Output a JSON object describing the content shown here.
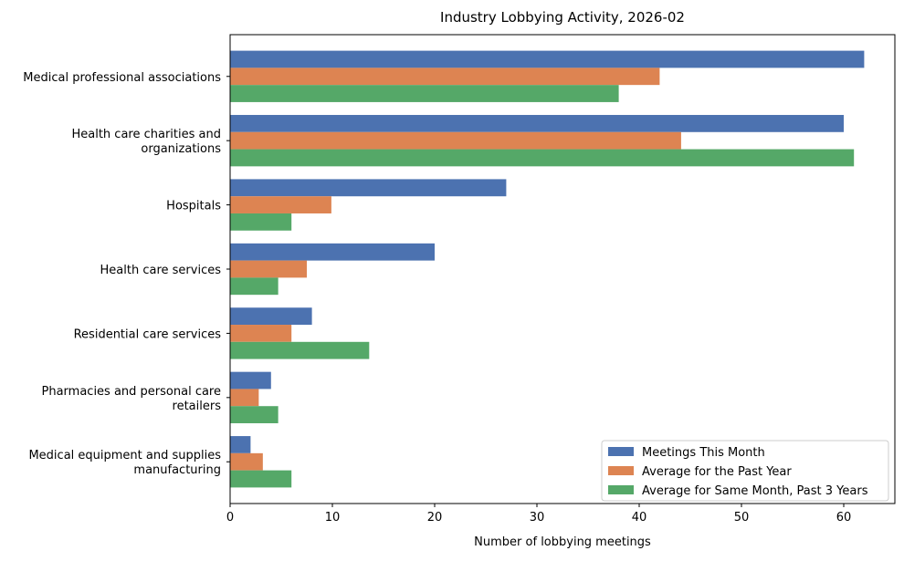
{
  "chart_data": {
    "type": "bar",
    "orientation": "horizontal",
    "title": "Industry Lobbying Activity, 2026-02",
    "xlabel": "Number of lobbying meetings",
    "ylabel": "",
    "xlim": [
      0,
      65
    ],
    "xticks": [
      0,
      10,
      20,
      30,
      40,
      50,
      60
    ],
    "grid": false,
    "legend_position": "lower right",
    "categories": [
      [
        "Medical professional associations"
      ],
      [
        "Health care charities and",
        "organizations"
      ],
      [
        "Hospitals"
      ],
      [
        "Health care services"
      ],
      [
        "Residential care services"
      ],
      [
        "Pharmacies and personal care",
        "retailers"
      ],
      [
        "Medical equipment and supplies",
        "manufacturing"
      ]
    ],
    "series": [
      {
        "name": "Meetings This Month",
        "color": "#4c72b0",
        "values": [
          62,
          60,
          27,
          20,
          8,
          4,
          2
        ]
      },
      {
        "name": "Average for the Past Year",
        "color": "#dd8452",
        "values": [
          42,
          44.1,
          9.9,
          7.5,
          6,
          2.8,
          3.2
        ]
      },
      {
        "name": "Average for Same Month, Past 3 Years",
        "color": "#55a868",
        "values": [
          38,
          61,
          6,
          4.7,
          13.6,
          4.7,
          6
        ]
      }
    ]
  }
}
